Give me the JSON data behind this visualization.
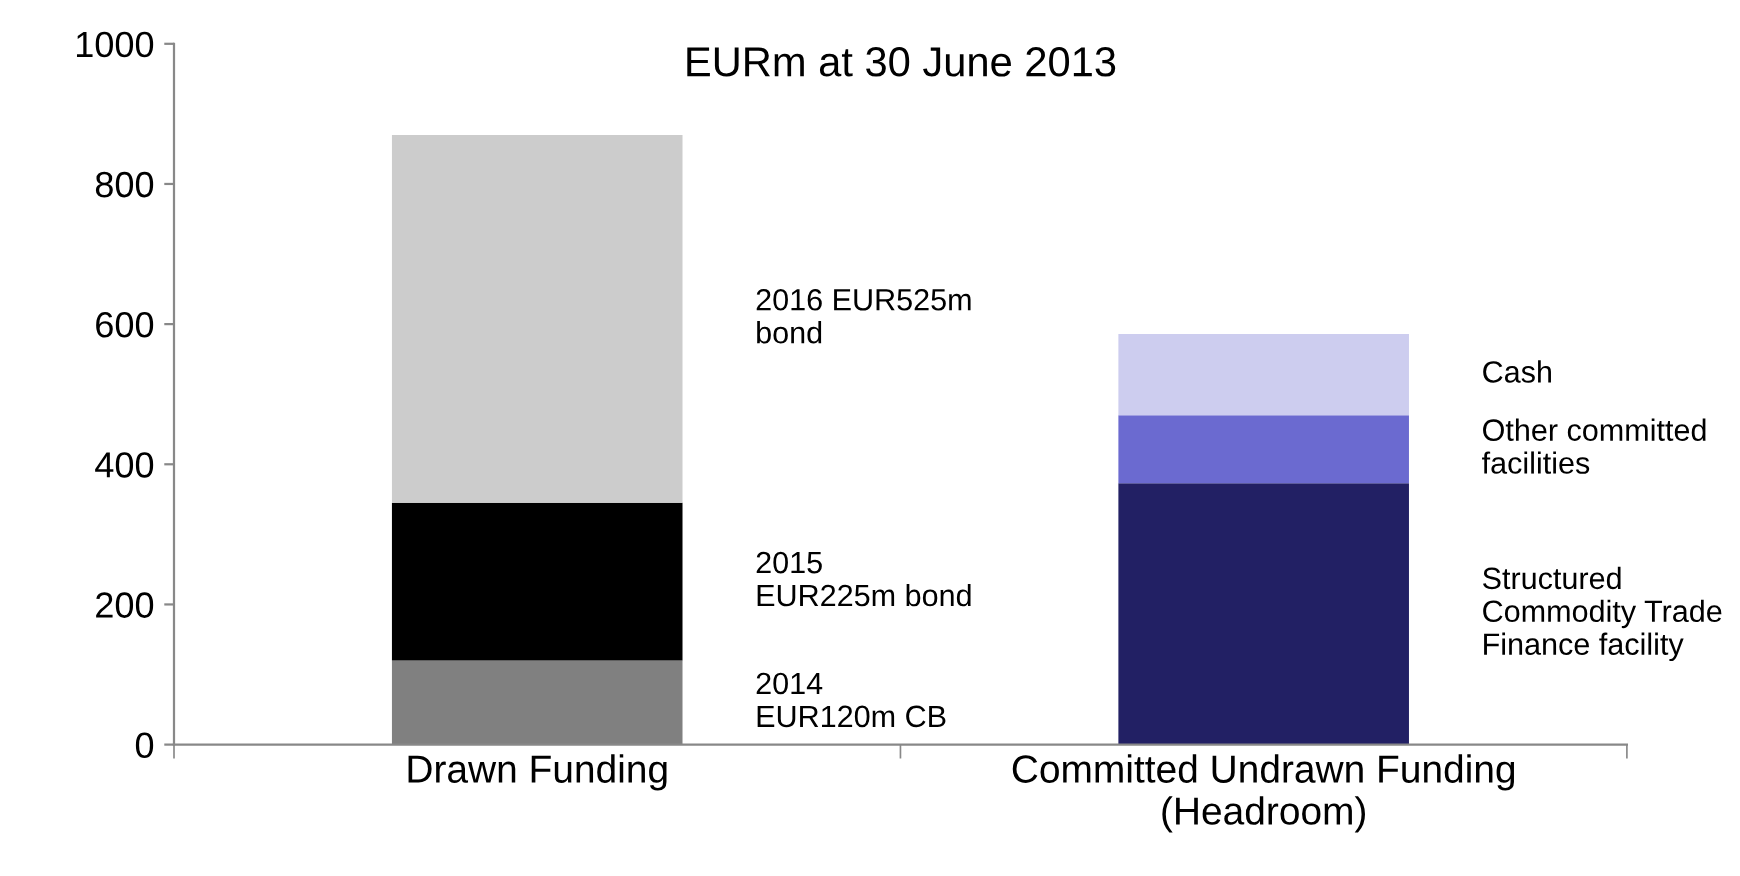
{
  "chart_data": {
    "type": "bar",
    "title": "EURm at 30 June 2013",
    "stacked": true,
    "categories": [
      "Drawn Funding",
      "Committed Undrawn Funding\n(Headroom)"
    ],
    "series": [
      {
        "name": "2014\nEUR120m CB",
        "color": "#808080",
        "values": [
          120,
          null
        ]
      },
      {
        "name": "2015\nEUR225m bond",
        "color": "#000000",
        "values": [
          225,
          null
        ]
      },
      {
        "name": "2016 EUR525m\nbond",
        "color": "#cccccc",
        "values": [
          525,
          null
        ]
      },
      {
        "name": "Structured\nCommodity Trade\nFinance facility",
        "color": "#222064",
        "values": [
          null,
          373
        ]
      },
      {
        "name": "Other committed\nfacilities",
        "color": "#6b6ad0",
        "values": [
          null,
          97
        ]
      },
      {
        "name": "Cash",
        "color": "#cdcdef",
        "values": [
          null,
          116
        ]
      }
    ],
    "ylim": [
      0,
      1000
    ],
    "yticks": [
      0,
      200,
      400,
      600,
      800,
      1000
    ],
    "grid": false,
    "legend": false
  }
}
